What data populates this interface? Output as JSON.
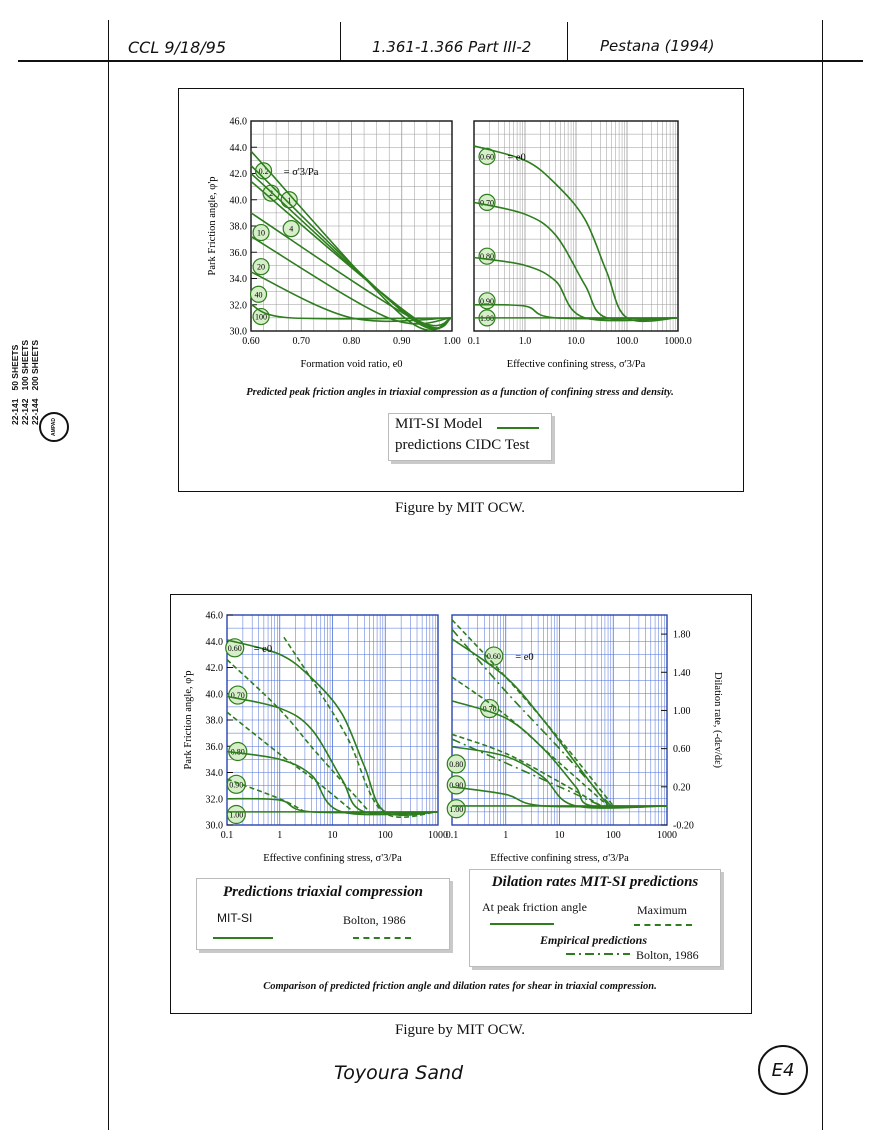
{
  "header": {
    "left_note": "CCL 9/18/95",
    "mid_note": "1.361-1.366  Part III-2",
    "right_note": "Pestana (1994)"
  },
  "pad_label": {
    "codes": [
      "22-141",
      "22-142",
      "22-144"
    ],
    "sheets": [
      "50 SHEETS",
      "100 SHEETS",
      "200 SHEETS"
    ],
    "brand": "AMPAD"
  },
  "figure1": {
    "caption": "Predicted peak friction angles in triaxial compression as a function of confining stress and density.",
    "credit": "Figure by MIT OCW.",
    "legend": {
      "line1": "MIT-SI Model",
      "line2": "predictions CIDC Test",
      "color": "#2e7d1e"
    }
  },
  "figure2": {
    "caption": "Comparison of predicted friction angle and dilation rates for shear in triaxial compression.",
    "credit": "Figure by MIT OCW.",
    "legend_left": {
      "title": "Predictions triaxial compression",
      "item1": "MIT-SI",
      "item2": "Bolton, 1986"
    },
    "legend_right": {
      "title": "Dilation rates MIT-SI predictions",
      "item1": "At peak friction angle",
      "item2": "Maximum",
      "subtitle": "Empirical predictions",
      "item3": "Bolton, 1986"
    }
  },
  "footer": {
    "note": "Toyoura Sand",
    "page_tag": "E4"
  },
  "chart_data": [
    {
      "type": "line",
      "xlabel": "Formation void ratio, e0",
      "ylabel": "Park Friction angle, φ'p",
      "xlim": [
        0.6,
        1.0
      ],
      "ylim": [
        30.0,
        46.0
      ],
      "xticks": [
        "0.60",
        "0.70",
        "0.80",
        "0.90",
        "1.00"
      ],
      "yticks": [
        "30.0",
        "32.0",
        "34.0",
        "36.0",
        "38.0",
        "40.0",
        "42.0",
        "44.0",
        "46.0"
      ],
      "annotation": "= σ'3/Pa",
      "series": [
        {
          "name": "0.2",
          "x": [
            0.6,
            0.906,
            1.0
          ],
          "y": [
            43.7,
            31.0,
            31.0
          ]
        },
        {
          "name": "1",
          "x": [
            0.6,
            0.917,
            1.0
          ],
          "y": [
            42.6,
            31.0,
            31.0
          ]
        },
        {
          "name": "2",
          "x": [
            0.6,
            0.92,
            1.0
          ],
          "y": [
            42.0,
            31.0,
            31.0
          ]
        },
        {
          "name": "4",
          "x": [
            0.6,
            0.925,
            1.0
          ],
          "y": [
            41.4,
            31.0,
            31.0
          ]
        },
        {
          "name": "10",
          "x": [
            0.6,
            0.92,
            1.0
          ],
          "y": [
            39.0,
            31.0,
            31.0
          ]
        },
        {
          "name": "20",
          "x": [
            0.6,
            0.873,
            1.0
          ],
          "y": [
            37.2,
            31.0,
            31.0
          ]
        },
        {
          "name": "40",
          "x": [
            0.6,
            0.8,
            1.0
          ],
          "y": [
            34.5,
            31.0,
            31.0
          ]
        },
        {
          "name": "100",
          "x": [
            0.6,
            0.68,
            1.0
          ],
          "y": [
            32.0,
            31.0,
            31.0
          ]
        }
      ]
    },
    {
      "type": "line",
      "xlabel": "Effective confining stress, σ'3/Pa",
      "xscale": "log",
      "xlim": [
        0.1,
        1000
      ],
      "ylim": [
        30.0,
        46.0
      ],
      "xticks": [
        "0.1",
        "1.0",
        "10.0",
        "100.0",
        "1000.0"
      ],
      "annotation": "= e0",
      "series": [
        {
          "name": "0.60",
          "x": [
            0.1,
            1.0,
            4.0,
            15.0,
            40.0,
            100.0,
            1000.0
          ],
          "y": [
            44.1,
            43.0,
            41.2,
            38.5,
            34.5,
            31.0,
            31.0
          ]
        },
        {
          "name": "0.70",
          "x": [
            0.1,
            1.0,
            4.0,
            15.0,
            40.0,
            1000.0
          ],
          "y": [
            39.8,
            38.9,
            37.3,
            33.5,
            31.0,
            31.0
          ]
        },
        {
          "name": "0.80",
          "x": [
            0.1,
            1.0,
            4.0,
            15.0,
            1000.0
          ],
          "y": [
            35.6,
            35.0,
            33.8,
            31.0,
            31.0
          ]
        },
        {
          "name": "0.90",
          "x": [
            0.1,
            1.0,
            4.0,
            1000.0
          ],
          "y": [
            32.0,
            31.9,
            31.0,
            31.0
          ]
        },
        {
          "name": "1.00",
          "x": [
            0.1,
            1000.0
          ],
          "y": [
            31.0,
            31.0
          ]
        }
      ]
    },
    {
      "type": "line",
      "xlabel": "Effective confining stress, σ'3/Pa",
      "ylabel": "Park Friction angle, φ'p",
      "xscale": "log",
      "xlim": [
        0.1,
        1000
      ],
      "ylim": [
        30.0,
        46.0
      ],
      "xticks": [
        "0.1",
        "1",
        "10",
        "100",
        "1000"
      ],
      "yticks": [
        "30.0",
        "32.0",
        "34.0",
        "36.0",
        "38.0",
        "40.0",
        "42.0",
        "44.0",
        "46.0"
      ],
      "annotation": "= e0",
      "series": [
        {
          "name": "0.60",
          "style": "solid",
          "x": [
            0.1,
            1.0,
            4.0,
            15.0,
            40.0,
            100.0,
            1000.0
          ],
          "y": [
            44.1,
            43.0,
            41.2,
            38.5,
            34.5,
            31.0,
            31.0
          ]
        },
        {
          "name": "0.70",
          "style": "solid",
          "x": [
            0.1,
            1.0,
            4.0,
            15.0,
            40.0,
            1000.0
          ],
          "y": [
            39.8,
            38.9,
            37.3,
            33.5,
            31.0,
            31.0
          ]
        },
        {
          "name": "0.80",
          "style": "solid",
          "x": [
            0.1,
            1.0,
            4.0,
            15.0,
            1000.0
          ],
          "y": [
            35.6,
            35.0,
            33.8,
            31.0,
            31.0
          ]
        },
        {
          "name": "0.90",
          "style": "solid",
          "x": [
            0.1,
            1.0,
            4.0,
            1000.0
          ],
          "y": [
            32.0,
            31.9,
            31.0,
            31.0
          ]
        },
        {
          "name": "1.00",
          "style": "solid",
          "x": [
            0.1,
            1000.0
          ],
          "y": [
            31.0,
            31.0
          ]
        },
        {
          "name": "Bolton, 1986 (0.60)",
          "style": "dashed",
          "x": [
            1.2,
            5.0,
            20.0,
            90.0,
            1000.0
          ],
          "y": [
            44.3,
            40.5,
            36.5,
            31.0,
            31.0
          ]
        },
        {
          "name": "Bolton, 1986 (0.70)",
          "style": "dashed",
          "x": [
            0.1,
            1.0,
            5.0,
            50.0
          ],
          "y": [
            42.6,
            38.8,
            35.5,
            31.0
          ]
        },
        {
          "name": "Bolton, 1986 (0.80)",
          "style": "dashed",
          "x": [
            0.1,
            1.0,
            5.0,
            25.0
          ],
          "y": [
            38.6,
            35.4,
            33.3,
            31.0
          ]
        },
        {
          "name": "Bolton, 1986 (0.90)",
          "style": "dashed",
          "x": [
            0.1,
            1.0,
            3.0
          ],
          "y": [
            33.5,
            32.0,
            31.0
          ]
        }
      ]
    },
    {
      "type": "line",
      "xlabel": "Effective confining stress, σ'3/Pa",
      "ylabel": "Dilation rate, (-dεv/dε)",
      "xscale": "log",
      "xlim": [
        0.1,
        1000
      ],
      "ylim": [
        -0.2,
        2.0
      ],
      "xticks": [
        "0.1",
        "1",
        "10",
        "100",
        "1000"
      ],
      "yticks": [
        "-0.20",
        "0.20",
        "0.60",
        "1.00",
        "1.40",
        "1.80"
      ],
      "annotation": "= e0",
      "series": [
        {
          "name": "0.60",
          "style": "solid",
          "x": [
            0.1,
            1.0,
            5.0,
            20.0,
            70.0,
            100.0,
            1000.0
          ],
          "y": [
            1.75,
            1.35,
            0.9,
            0.45,
            0.05,
            0.0,
            0.0
          ]
        },
        {
          "name": "0.70",
          "style": "solid",
          "x": [
            0.1,
            1.0,
            5.0,
            20.0,
            40.0,
            1000.0
          ],
          "y": [
            1.1,
            0.92,
            0.6,
            0.2,
            0.0,
            0.0
          ]
        },
        {
          "name": "0.80",
          "style": "solid",
          "x": [
            0.1,
            1.0,
            5.0,
            20.0,
            1000.0
          ],
          "y": [
            0.62,
            0.52,
            0.3,
            0.0,
            0.0
          ]
        },
        {
          "name": "0.90",
          "style": "solid",
          "x": [
            0.1,
            1.0,
            5.0,
            1000.0
          ],
          "y": [
            0.2,
            0.12,
            0.0,
            0.0
          ]
        },
        {
          "name": "1.00",
          "style": "solid",
          "x": [
            0.1,
            1000.0
          ],
          "y": [
            0.0,
            0.0
          ]
        },
        {
          "name": "Maximum (0.60)",
          "style": "dashed",
          "x": [
            0.1,
            1.0,
            10.0,
            100.0
          ],
          "y": [
            1.95,
            1.35,
            0.7,
            0.0
          ]
        },
        {
          "name": "Maximum (0.70)",
          "style": "dashed",
          "x": [
            0.1,
            1.0,
            10.0,
            80.0
          ],
          "y": [
            1.35,
            0.95,
            0.45,
            0.0
          ]
        },
        {
          "name": "Maximum (0.80)",
          "style": "dashed",
          "x": [
            0.1,
            1.0,
            10.0,
            60.0
          ],
          "y": [
            0.75,
            0.55,
            0.25,
            0.0
          ]
        },
        {
          "name": "Bolton, 1986 (0.60)",
          "style": "dashdot",
          "x": [
            0.1,
            1.0,
            10.0,
            90.0
          ],
          "y": [
            1.85,
            1.2,
            0.6,
            0.0
          ]
        },
        {
          "name": "Bolton, 1986 (0.70)",
          "style": "dashdot",
          "x": [
            0.1,
            1.0,
            10.0,
            60.0
          ],
          "y": [
            0.7,
            0.45,
            0.2,
            0.0
          ]
        }
      ]
    }
  ]
}
